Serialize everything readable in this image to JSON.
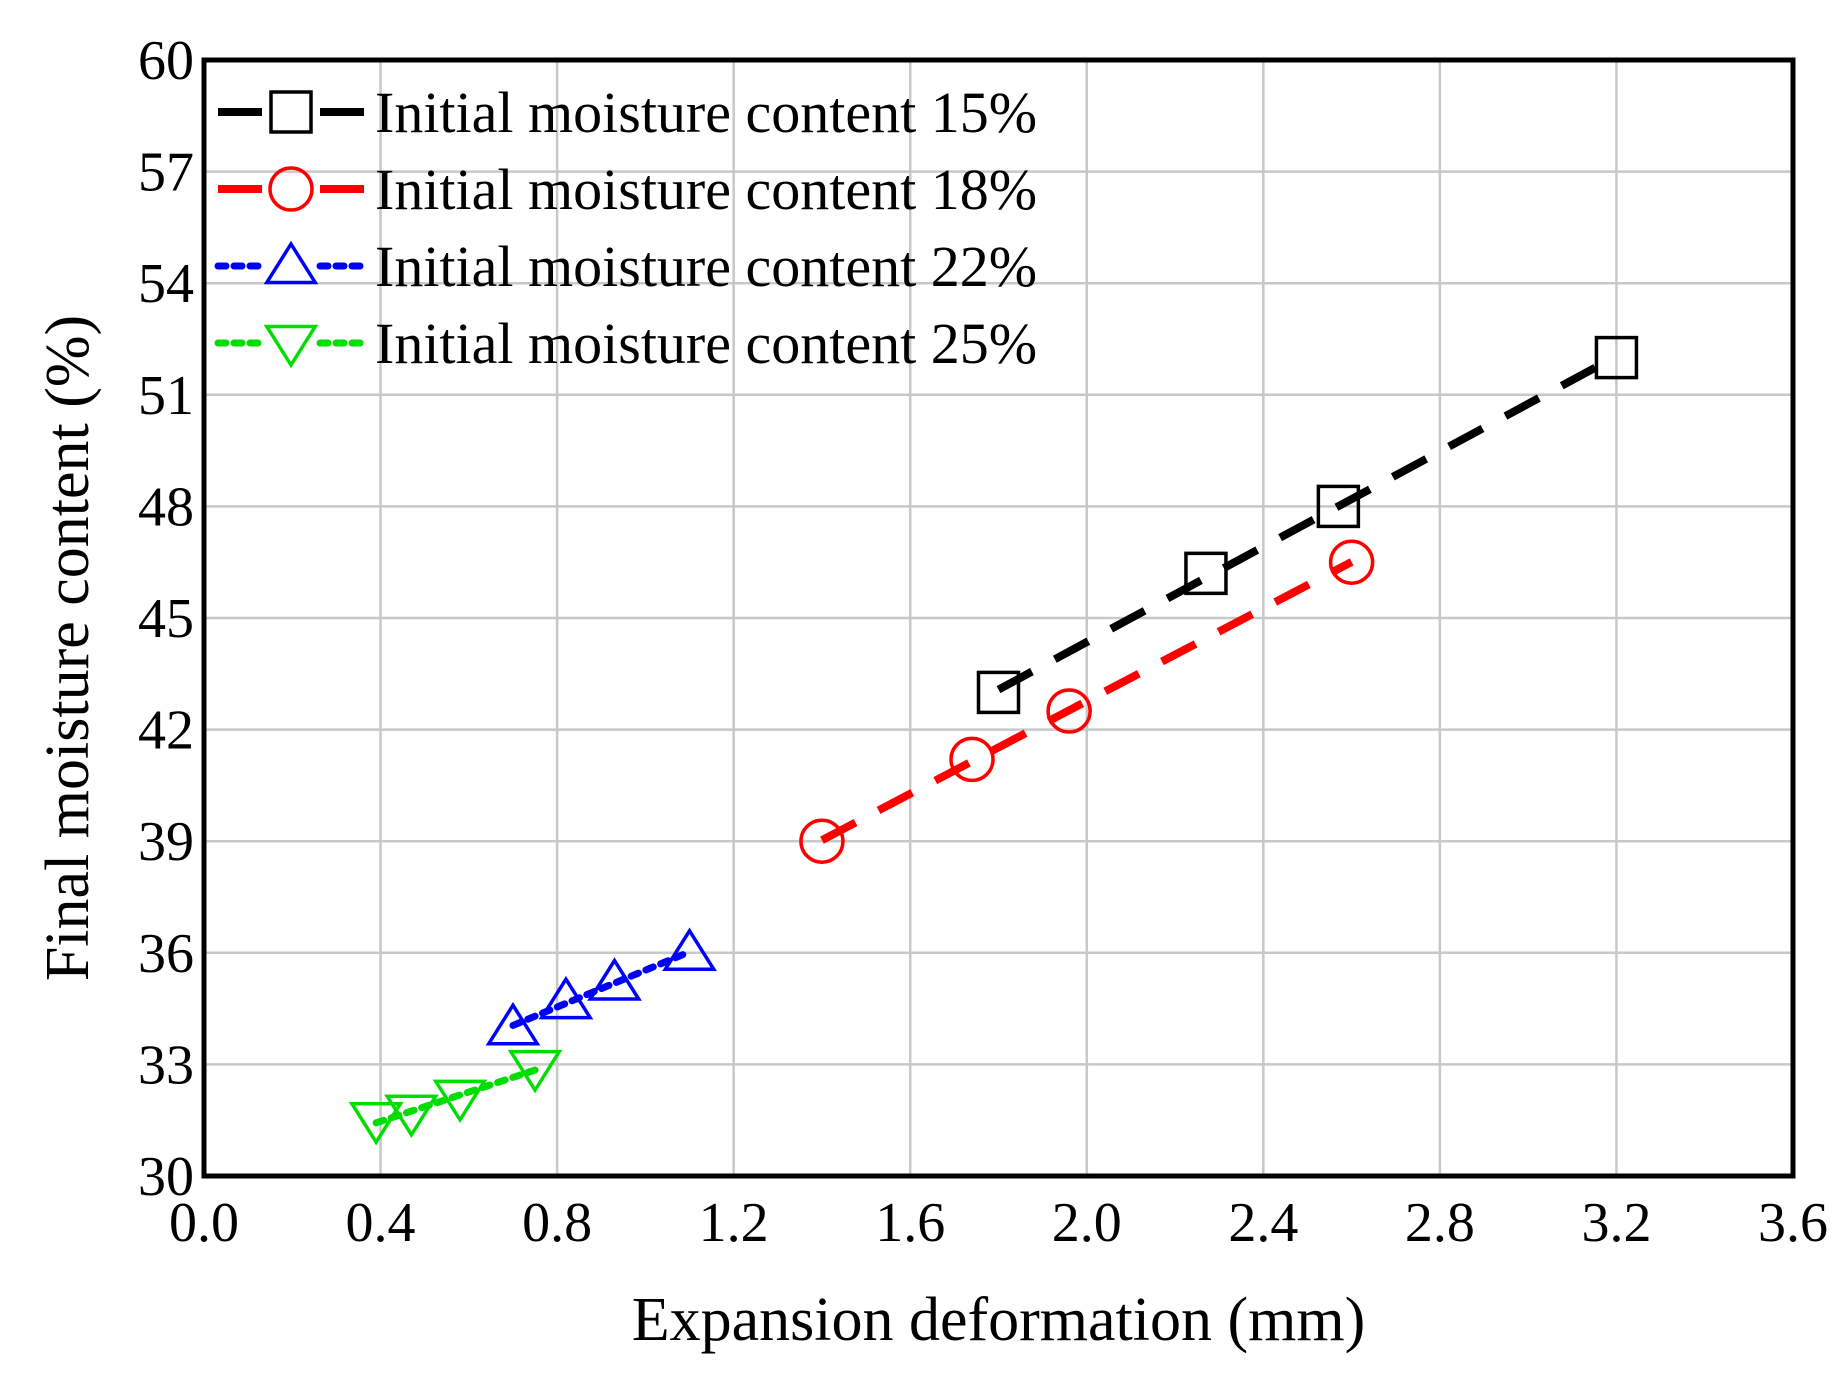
{
  "chart_data": {
    "type": "line",
    "xlabel": "Expansion deformation  (mm)",
    "ylabel": "Final moisture content (%)",
    "xlim": [
      0.0,
      3.6
    ],
    "ylim": [
      30,
      60
    ],
    "xticks": [
      "0.0",
      "0.4",
      "0.8",
      "1.2",
      "1.6",
      "2.0",
      "2.4",
      "2.8",
      "3.2",
      "3.6"
    ],
    "yticks": [
      "30",
      "33",
      "36",
      "39",
      "42",
      "45",
      "48",
      "51",
      "54",
      "57",
      "60"
    ],
    "xtick_values": [
      0.0,
      0.4,
      0.8,
      1.2,
      1.6,
      2.0,
      2.4,
      2.8,
      3.2,
      3.6
    ],
    "ytick_values": [
      30,
      33,
      36,
      39,
      42,
      45,
      48,
      51,
      54,
      57,
      60
    ],
    "grid": true,
    "legend_position": "top-left",
    "series": [
      {
        "name": "Initial moisture content 15%",
        "color": "#000000",
        "marker": "square",
        "line_style": "dashed",
        "x": [
          1.8,
          2.27,
          2.57,
          3.2
        ],
        "y": [
          43.0,
          46.2,
          48.0,
          52.0
        ]
      },
      {
        "name": "Initial moisture content 18%",
        "color": "#ff0000",
        "marker": "circle",
        "line_style": "dashed",
        "x": [
          1.4,
          1.74,
          1.96,
          2.6
        ],
        "y": [
          39.0,
          41.2,
          42.5,
          46.5
        ]
      },
      {
        "name": "Initial moisture content 22%",
        "color": "#0000ff",
        "marker": "triangle-up",
        "line_style": "dotted",
        "x": [
          0.7,
          0.82,
          0.93,
          1.1
        ],
        "y": [
          34.0,
          34.7,
          35.2,
          36.0
        ]
      },
      {
        "name": "Initial moisture content 25%",
        "color": "#00dd00",
        "marker": "triangle-down",
        "line_style": "dotted",
        "x": [
          0.39,
          0.47,
          0.58,
          0.75
        ],
        "y": [
          31.5,
          31.7,
          32.1,
          32.9
        ]
      }
    ]
  }
}
